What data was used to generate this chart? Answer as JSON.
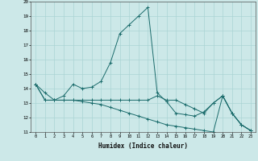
{
  "xlabel": "Humidex (Indice chaleur)",
  "bg_color": "#cce8e8",
  "grid_color": "#aad4d4",
  "line_color": "#1a6b6b",
  "xlim": [
    -0.5,
    23.5
  ],
  "ylim": [
    11,
    20
  ],
  "s1x": [
    0,
    1,
    2,
    3,
    4,
    5,
    6,
    7,
    8,
    9,
    10,
    11,
    12,
    13,
    14,
    15,
    16,
    17,
    18,
    19,
    20,
    21,
    22,
    23
  ],
  "s1y": [
    14.3,
    13.7,
    13.2,
    13.5,
    14.3,
    14.0,
    14.1,
    14.5,
    15.8,
    17.8,
    18.4,
    19.0,
    19.6,
    13.7,
    13.1,
    12.3,
    12.2,
    12.1,
    12.4,
    13.0,
    13.5,
    12.3,
    11.5,
    11.1
  ],
  "s2x": [
    0,
    1,
    2,
    3,
    4,
    5,
    6,
    7,
    8,
    9,
    10,
    11,
    12,
    13,
    14,
    15,
    16,
    17,
    18,
    19,
    20,
    21,
    22,
    23
  ],
  "s2y": [
    14.3,
    13.2,
    13.2,
    13.2,
    13.2,
    13.2,
    13.2,
    13.2,
    13.2,
    13.2,
    13.2,
    13.2,
    13.2,
    13.5,
    13.2,
    13.2,
    12.9,
    12.6,
    12.3,
    13.0,
    13.5,
    12.3,
    11.5,
    11.1
  ],
  "s3x": [
    0,
    1,
    2,
    3,
    4,
    5,
    6,
    7,
    8,
    9,
    10,
    11,
    12,
    13,
    14,
    15,
    16,
    17,
    18,
    19,
    20,
    21,
    22,
    23
  ],
  "s3y": [
    14.3,
    13.2,
    13.2,
    13.2,
    13.2,
    13.1,
    13.0,
    12.9,
    12.7,
    12.5,
    12.3,
    12.1,
    11.9,
    11.7,
    11.5,
    11.4,
    11.3,
    11.2,
    11.1,
    11.0,
    13.5,
    12.3,
    11.5,
    11.1
  ]
}
